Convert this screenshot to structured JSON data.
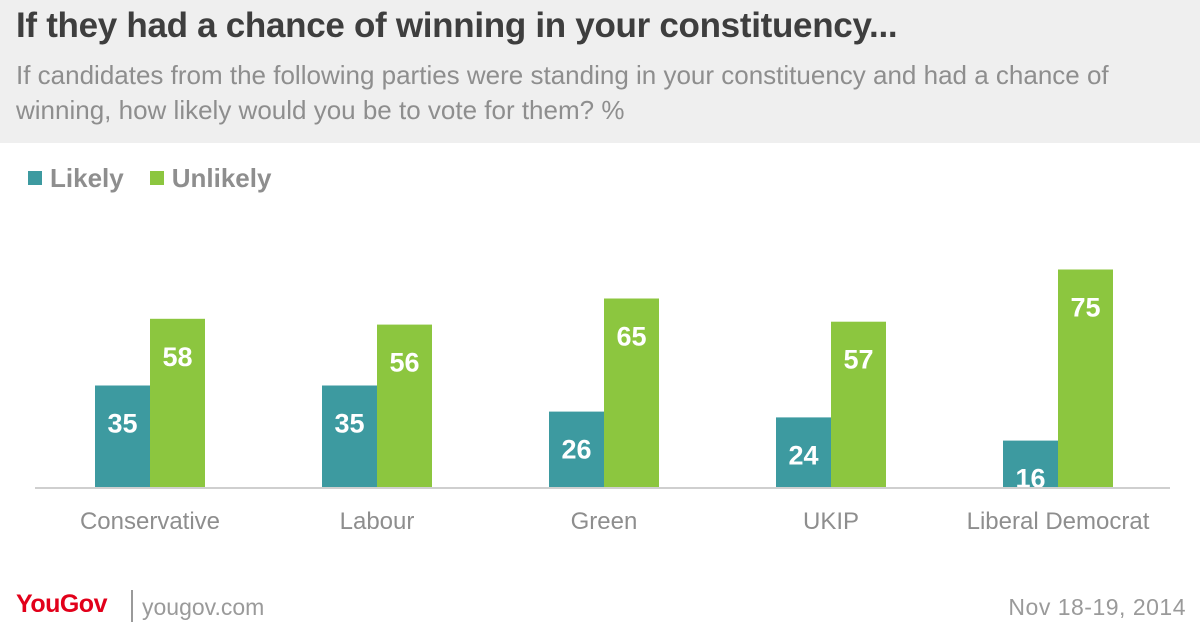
{
  "header": {
    "title": "If they had a chance of winning in your constituency...",
    "subtitle": "If candidates from the following parties were standing in your constituency and had a chance of winning, how likely would you be to vote for them? %"
  },
  "legend": {
    "likely_label": "Likely",
    "unlikely_label": "Unlikely"
  },
  "colors": {
    "likely": "#3d9aa0",
    "unlikely": "#8cc63f",
    "axis": "#cfcfcf",
    "label": "#8e8e8e"
  },
  "chart_data": {
    "type": "bar",
    "title": "If they had a chance of winning in your constituency...",
    "categories": [
      "Conservative",
      "Labour",
      "Green",
      "UKIP",
      "Liberal Democrat"
    ],
    "series": [
      {
        "name": "Likely",
        "values": [
          35,
          35,
          26,
          24,
          16
        ]
      },
      {
        "name": "Unlikely",
        "values": [
          58,
          56,
          65,
          57,
          75
        ]
      }
    ],
    "xlabel": "",
    "ylabel": "%",
    "ylim": [
      0,
      75
    ]
  },
  "footer": {
    "brand": "YouGov",
    "site": "yougov.com",
    "date": "Nov 18-19, 2014"
  }
}
